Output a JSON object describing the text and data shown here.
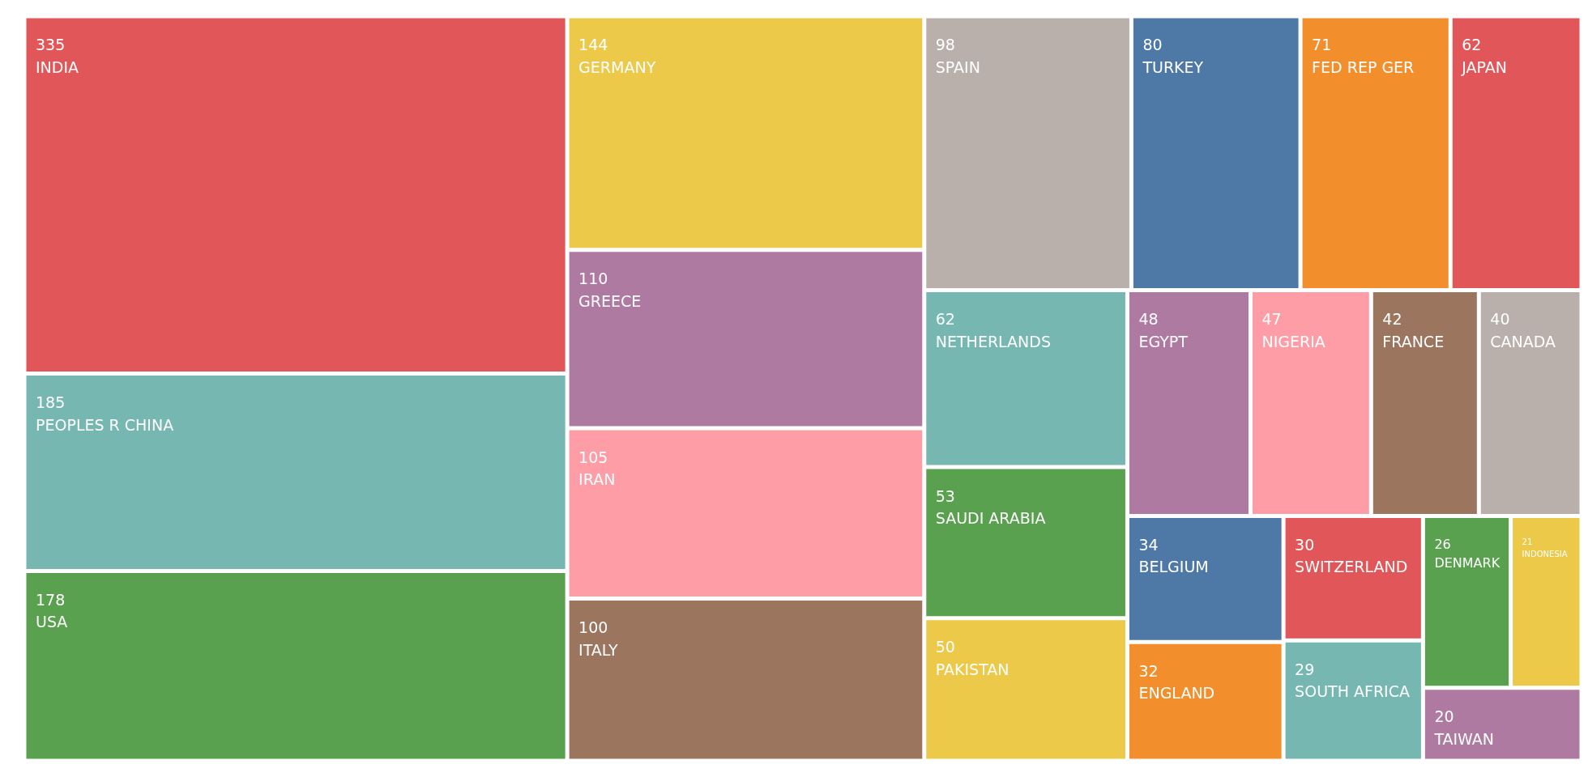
{
  "chart_data": {
    "type": "other",
    "categories": [
      "INDIA",
      "PEOPLES R CHINA",
      "USA",
      "GERMANY",
      "GREECE",
      "IRAN",
      "ITALY",
      "SPAIN",
      "TURKEY",
      "FED REP GER",
      "JAPAN",
      "NETHERLANDS",
      "SAUDI ARABIA",
      "PAKISTAN",
      "EGYPT",
      "NIGERIA",
      "FRANCE",
      "CANADA",
      "BELGIUM",
      "ENGLAND",
      "SWITZERLAND",
      "SOUTH AFRICA",
      "DENMARK",
      "INDONESIA",
      "TAIWAN"
    ],
    "values": [
      335,
      185,
      178,
      144,
      110,
      105,
      100,
      98,
      80,
      71,
      62,
      62,
      53,
      50,
      48,
      47,
      42,
      40,
      34,
      32,
      30,
      29,
      26,
      21,
      20
    ],
    "colors": [
      "#e15759",
      "#76b7b2",
      "#59a14f",
      "#edc949",
      "#af7aa1",
      "#ff9da7",
      "#9c755f",
      "#bab0ab",
      "#4e79a7",
      "#f28e2c",
      "#e15759",
      "#76b7b2",
      "#59a14f",
      "#edc949",
      "#af7aa1",
      "#ff9da7",
      "#9c755f",
      "#bab0ab",
      "#4e79a7",
      "#f28e2c",
      "#e15759",
      "#76b7b2",
      "#59a14f",
      "#edc949",
      "#af7aa1"
    ],
    "data_labels": true
  }
}
